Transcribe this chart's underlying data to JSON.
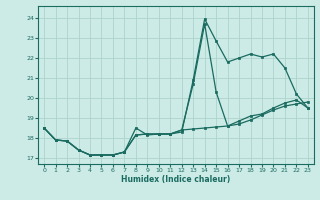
{
  "xlabel": "Humidex (Indice chaleur)",
  "ylabel": "",
  "xlim": [
    -0.5,
    23.5
  ],
  "ylim": [
    16.7,
    24.6
  ],
  "xticks": [
    0,
    1,
    2,
    3,
    4,
    5,
    6,
    7,
    8,
    9,
    10,
    11,
    12,
    13,
    14,
    15,
    16,
    17,
    18,
    19,
    20,
    21,
    22,
    23
  ],
  "yticks": [
    17,
    18,
    19,
    20,
    21,
    22,
    23,
    24
  ],
  "bg_color": "#cceae6",
  "line_color": "#1a6b60",
  "grid_color": "#aed4ce",
  "line1_x": [
    0,
    1,
    2,
    3,
    4,
    5,
    6,
    7,
    8,
    9,
    10,
    11,
    12,
    13,
    14,
    15,
    16,
    17,
    18,
    19,
    20,
    21,
    22,
    23
  ],
  "line1_y": [
    18.5,
    17.9,
    17.85,
    17.4,
    17.15,
    17.15,
    17.15,
    17.3,
    18.5,
    18.15,
    18.2,
    18.2,
    18.3,
    20.9,
    23.95,
    22.85,
    21.8,
    22.0,
    22.2,
    22.05,
    22.2,
    21.5,
    20.2,
    19.5
  ],
  "line2_x": [
    0,
    1,
    2,
    3,
    4,
    5,
    6,
    7,
    8,
    9,
    10,
    11,
    12,
    13,
    14,
    15,
    16,
    17,
    18,
    19,
    20,
    21,
    22,
    23
  ],
  "line2_y": [
    18.5,
    17.9,
    17.85,
    17.4,
    17.15,
    17.15,
    17.15,
    17.3,
    18.15,
    18.2,
    18.2,
    18.2,
    18.4,
    18.45,
    18.5,
    18.55,
    18.6,
    18.7,
    18.9,
    19.15,
    19.4,
    19.6,
    19.7,
    19.8
  ],
  "line3_x": [
    0,
    1,
    2,
    3,
    4,
    5,
    6,
    7,
    8,
    9,
    10,
    11,
    12,
    13,
    14,
    15,
    16,
    17,
    18,
    19,
    20,
    21,
    22,
    23
  ],
  "line3_y": [
    18.5,
    17.9,
    17.85,
    17.4,
    17.15,
    17.15,
    17.15,
    17.3,
    18.15,
    18.2,
    18.2,
    18.2,
    18.4,
    20.7,
    23.7,
    20.3,
    18.6,
    18.85,
    19.1,
    19.2,
    19.5,
    19.75,
    19.9,
    19.5
  ]
}
